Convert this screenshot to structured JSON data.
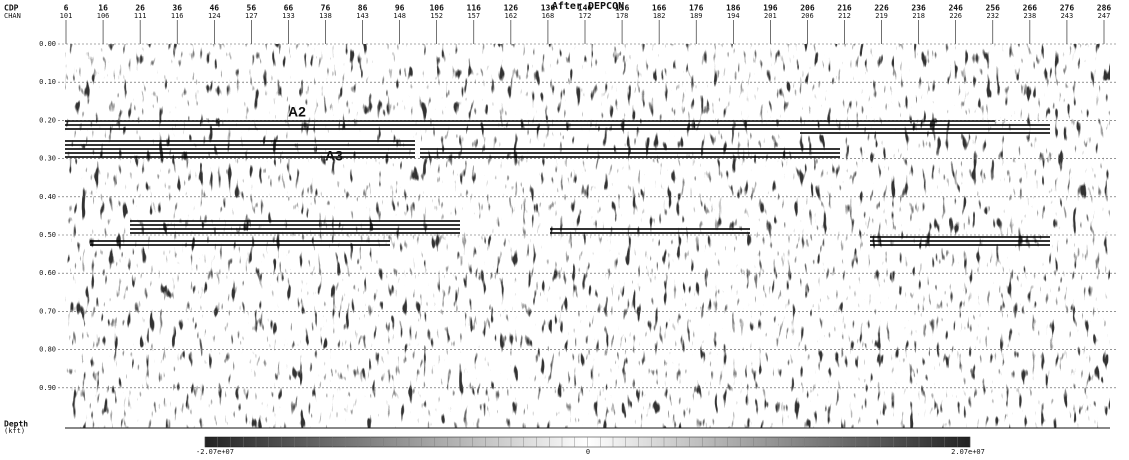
{
  "title": "After DEPCON",
  "cdp_label": "CDP",
  "chan_label": "CHAN",
  "cdp": [
    "6",
    "16",
    "26",
    "36",
    "46",
    "56",
    "66",
    "76",
    "86",
    "96",
    "106",
    "116",
    "126",
    "136",
    "146",
    "156",
    "166",
    "176",
    "186",
    "196",
    "206",
    "216",
    "226",
    "236",
    "246",
    "256",
    "266",
    "276",
    "286"
  ],
  "chan": [
    "101",
    "106",
    "111",
    "116",
    "124",
    "127",
    "133",
    "138",
    "143",
    "148",
    "152",
    "157",
    "162",
    "168",
    "172",
    "178",
    "182",
    "189",
    "194",
    "201",
    "206",
    "212",
    "219",
    "218",
    "226",
    "232",
    "238",
    "243",
    "247"
  ],
  "depth_ticks": [
    "0.00",
    "0.10",
    "0.20",
    "0.30",
    "0.40",
    "0.50",
    "0.60",
    "0.70",
    "0.80",
    "0.90"
  ],
  "depth_label": "Depth",
  "depth_unit": "(kft)",
  "annotations": [
    "A2",
    "A3"
  ],
  "colorbar": {
    "min": "-2.07e+07",
    "mid": "0",
    "max": "2.07e+07"
  }
}
